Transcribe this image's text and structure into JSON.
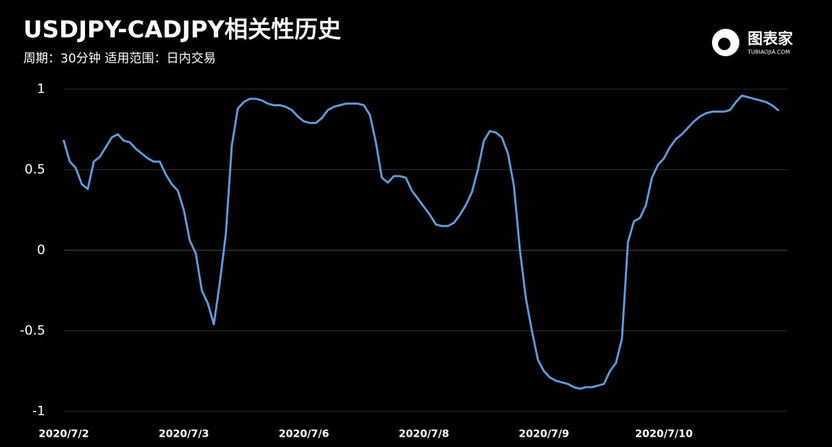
{
  "chart_data": {
    "type": "line",
    "title": "USDJPY-CADJPY相关性历史",
    "subtitle": "周期：30分钟  适用范围：日内交易",
    "logo": {
      "name": "图表家",
      "site": "TUBIAOJIA.COM"
    },
    "categories": [
      "2020/7/2",
      null,
      null,
      null,
      null,
      null,
      null,
      null,
      null,
      null,
      null,
      null,
      null,
      null,
      null,
      null,
      null,
      null,
      null,
      null,
      "2020/7/3",
      null,
      null,
      null,
      null,
      null,
      null,
      null,
      null,
      null,
      null,
      null,
      null,
      null,
      null,
      null,
      null,
      null,
      null,
      null,
      "2020/7/6",
      null,
      null,
      null,
      null,
      null,
      null,
      null,
      null,
      null,
      null,
      null,
      null,
      null,
      null,
      null,
      null,
      null,
      null,
      null,
      "2020/7/8",
      null,
      null,
      null,
      null,
      null,
      null,
      null,
      null,
      null,
      null,
      null,
      null,
      null,
      null,
      null,
      null,
      null,
      null,
      null,
      "2020/7/9",
      null,
      null,
      null,
      null,
      null,
      null,
      null,
      null,
      null,
      null,
      null,
      null,
      null,
      null,
      null,
      null,
      null,
      null,
      null,
      "2020/7/10",
      null,
      null,
      null,
      null,
      null,
      null,
      null,
      null,
      null,
      null,
      null,
      null,
      null,
      null,
      null,
      null,
      null,
      null,
      null
    ],
    "series": [
      {
        "color": "#5b9ee0",
        "values": [
          0.68,
          0.55,
          0.51,
          0.41,
          0.38,
          0.55,
          0.58,
          0.64,
          0.7,
          0.72,
          0.68,
          0.67,
          0.63,
          0.6,
          0.57,
          0.55,
          0.55,
          0.47,
          0.41,
          0.37,
          0.25,
          0.06,
          -0.02,
          -0.25,
          -0.33,
          -0.46,
          -0.2,
          0.1,
          0.65,
          0.88,
          0.92,
          0.94,
          0.94,
          0.93,
          0.91,
          0.9,
          0.9,
          0.89,
          0.87,
          0.83,
          0.8,
          0.79,
          0.79,
          0.82,
          0.87,
          0.89,
          0.9,
          0.91,
          0.91,
          0.91,
          0.9,
          0.84,
          0.67,
          0.45,
          0.42,
          0.46,
          0.46,
          0.45,
          0.37,
          0.32,
          0.27,
          0.22,
          0.16,
          0.15,
          0.15,
          0.17,
          0.22,
          0.28,
          0.36,
          0.5,
          0.68,
          0.74,
          0.73,
          0.7,
          0.6,
          0.4,
          0.0,
          -0.3,
          -0.5,
          -0.68,
          -0.75,
          -0.79,
          -0.81,
          -0.82,
          -0.83,
          -0.85,
          -0.86,
          -0.85,
          -0.85,
          -0.84,
          -0.83,
          -0.75,
          -0.7,
          -0.55,
          0.05,
          0.18,
          0.2,
          0.28,
          0.45,
          0.53,
          0.57,
          0.64,
          0.69,
          0.72,
          0.76,
          0.8,
          0.83,
          0.85,
          0.86,
          0.86,
          0.86,
          0.87,
          0.92,
          0.96,
          0.95,
          0.94,
          0.93,
          0.92,
          0.9,
          0.87
        ]
      }
    ],
    "ylim": [
      -1,
      1
    ],
    "yticks": [
      1,
      0.5,
      0,
      -0.5,
      -1
    ],
    "grid": true
  }
}
